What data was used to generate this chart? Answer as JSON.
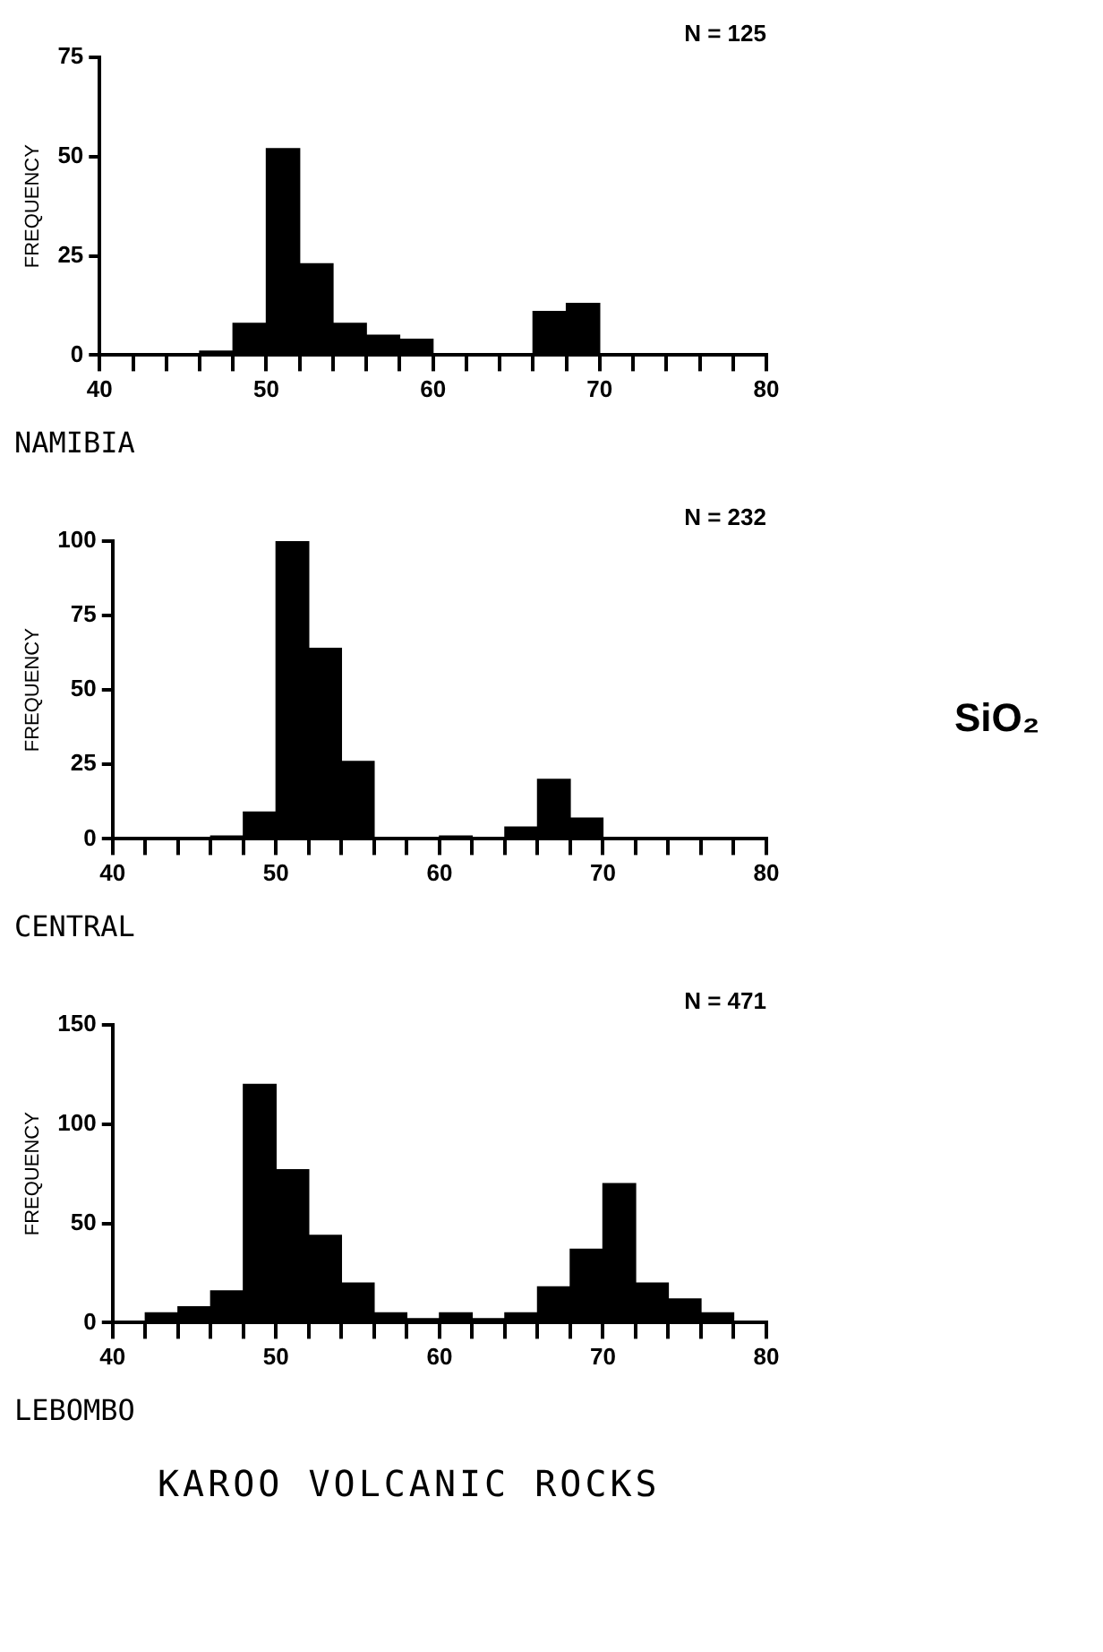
{
  "chart_data": [
    {
      "type": "histogram",
      "title": "NAMIBIA",
      "ylabel": "FREQUENCY",
      "annotations": [
        "N = 125"
      ],
      "color": "#000000",
      "bins": [
        40,
        42,
        44,
        46,
        48,
        50,
        52,
        54,
        56,
        58,
        60,
        62,
        64,
        66,
        68,
        70,
        72,
        74,
        76,
        78,
        80
      ],
      "values": [
        0,
        0,
        0,
        1,
        8,
        52,
        23,
        8,
        5,
        4,
        0,
        0,
        0,
        11,
        13,
        0,
        0,
        0,
        0,
        0
      ],
      "xlim": [
        40,
        80
      ],
      "xticks": [
        40,
        {
          "value": 42,
          "label": null
        },
        {
          "value": 44,
          "label": null
        },
        {
          "value": 46,
          "label": null
        },
        {
          "value": 48,
          "label": null
        },
        50,
        {
          "value": 52,
          "label": null
        },
        {
          "value": 54,
          "label": null
        },
        {
          "value": 56,
          "label": null
        },
        {
          "value": 58,
          "label": null
        },
        60,
        {
          "value": 62,
          "label": null
        },
        {
          "value": 64,
          "label": null
        },
        {
          "value": 66,
          "label": null
        },
        {
          "value": 68,
          "label": null
        },
        70,
        {
          "value": 72,
          "label": null
        },
        {
          "value": 74,
          "label": null
        },
        {
          "value": 76,
          "label": null
        },
        {
          "value": 78,
          "label": null
        },
        80
      ],
      "ylim": [
        0,
        75
      ],
      "yticks": [
        0,
        25,
        50,
        75
      ],
      "grid": false,
      "legend": false
    },
    {
      "type": "histogram",
      "title": "CENTRAL",
      "ylabel": "FREQUENCY",
      "xlabel": "SiO₂",
      "annotations": [
        "N = 232"
      ],
      "color": "#000000",
      "bins": [
        40,
        42,
        44,
        46,
        48,
        50,
        52,
        54,
        56,
        58,
        60,
        62,
        64,
        66,
        68,
        70,
        72,
        74,
        76,
        78,
        80
      ],
      "values": [
        0,
        0,
        0,
        1,
        9,
        100,
        64,
        26,
        0,
        0,
        1,
        0,
        4,
        20,
        7,
        0,
        0,
        0,
        0,
        0
      ],
      "xlim": [
        40,
        80
      ],
      "xticks": [
        40,
        {
          "value": 42,
          "label": null
        },
        {
          "value": 44,
          "label": null
        },
        {
          "value": 46,
          "label": null
        },
        {
          "value": 48,
          "label": null
        },
        50,
        {
          "value": 52,
          "label": null
        },
        {
          "value": 54,
          "label": null
        },
        {
          "value": 56,
          "label": null
        },
        {
          "value": 58,
          "label": null
        },
        60,
        {
          "value": 62,
          "label": null
        },
        {
          "value": 64,
          "label": null
        },
        {
          "value": 66,
          "label": null
        },
        {
          "value": 68,
          "label": null
        },
        70,
        {
          "value": 72,
          "label": null
        },
        {
          "value": 74,
          "label": null
        },
        {
          "value": 76,
          "label": null
        },
        {
          "value": 78,
          "label": null
        },
        80
      ],
      "ylim": [
        0,
        100
      ],
      "yticks": [
        0,
        25,
        50,
        75,
        100
      ],
      "grid": false,
      "legend": false
    },
    {
      "type": "histogram",
      "title": "LEBOMBO",
      "ylabel": "FREQUENCY",
      "annotations": [
        "N = 471",
        "KAROO VOLCANIC ROCKS"
      ],
      "color": "#000000",
      "bins": [
        40,
        42,
        44,
        46,
        48,
        50,
        52,
        54,
        56,
        58,
        60,
        62,
        64,
        66,
        68,
        70,
        72,
        74,
        76,
        78,
        80
      ],
      "values": [
        0,
        5,
        8,
        16,
        120,
        77,
        44,
        20,
        5,
        2,
        5,
        2,
        5,
        18,
        37,
        70,
        20,
        12,
        5,
        0
      ],
      "xlim": [
        40,
        80
      ],
      "xticks": [
        40,
        {
          "value": 42,
          "label": null
        },
        {
          "value": 44,
          "label": null
        },
        {
          "value": 46,
          "label": null
        },
        {
          "value": 48,
          "label": null
        },
        50,
        {
          "value": 52,
          "label": null
        },
        {
          "value": 54,
          "label": null
        },
        {
          "value": 56,
          "label": null
        },
        {
          "value": 58,
          "label": null
        },
        60,
        {
          "value": 62,
          "label": null
        },
        {
          "value": 64,
          "label": null
        },
        {
          "value": 66,
          "label": null
        },
        {
          "value": 68,
          "label": null
        },
        70,
        {
          "value": 72,
          "label": null
        },
        {
          "value": 74,
          "label": null
        },
        {
          "value": 76,
          "label": null
        },
        {
          "value": 78,
          "label": null
        },
        80
      ],
      "ylim": [
        0,
        150
      ],
      "yticks": [
        0,
        50,
        100,
        150
      ],
      "grid": false,
      "legend": false
    }
  ]
}
